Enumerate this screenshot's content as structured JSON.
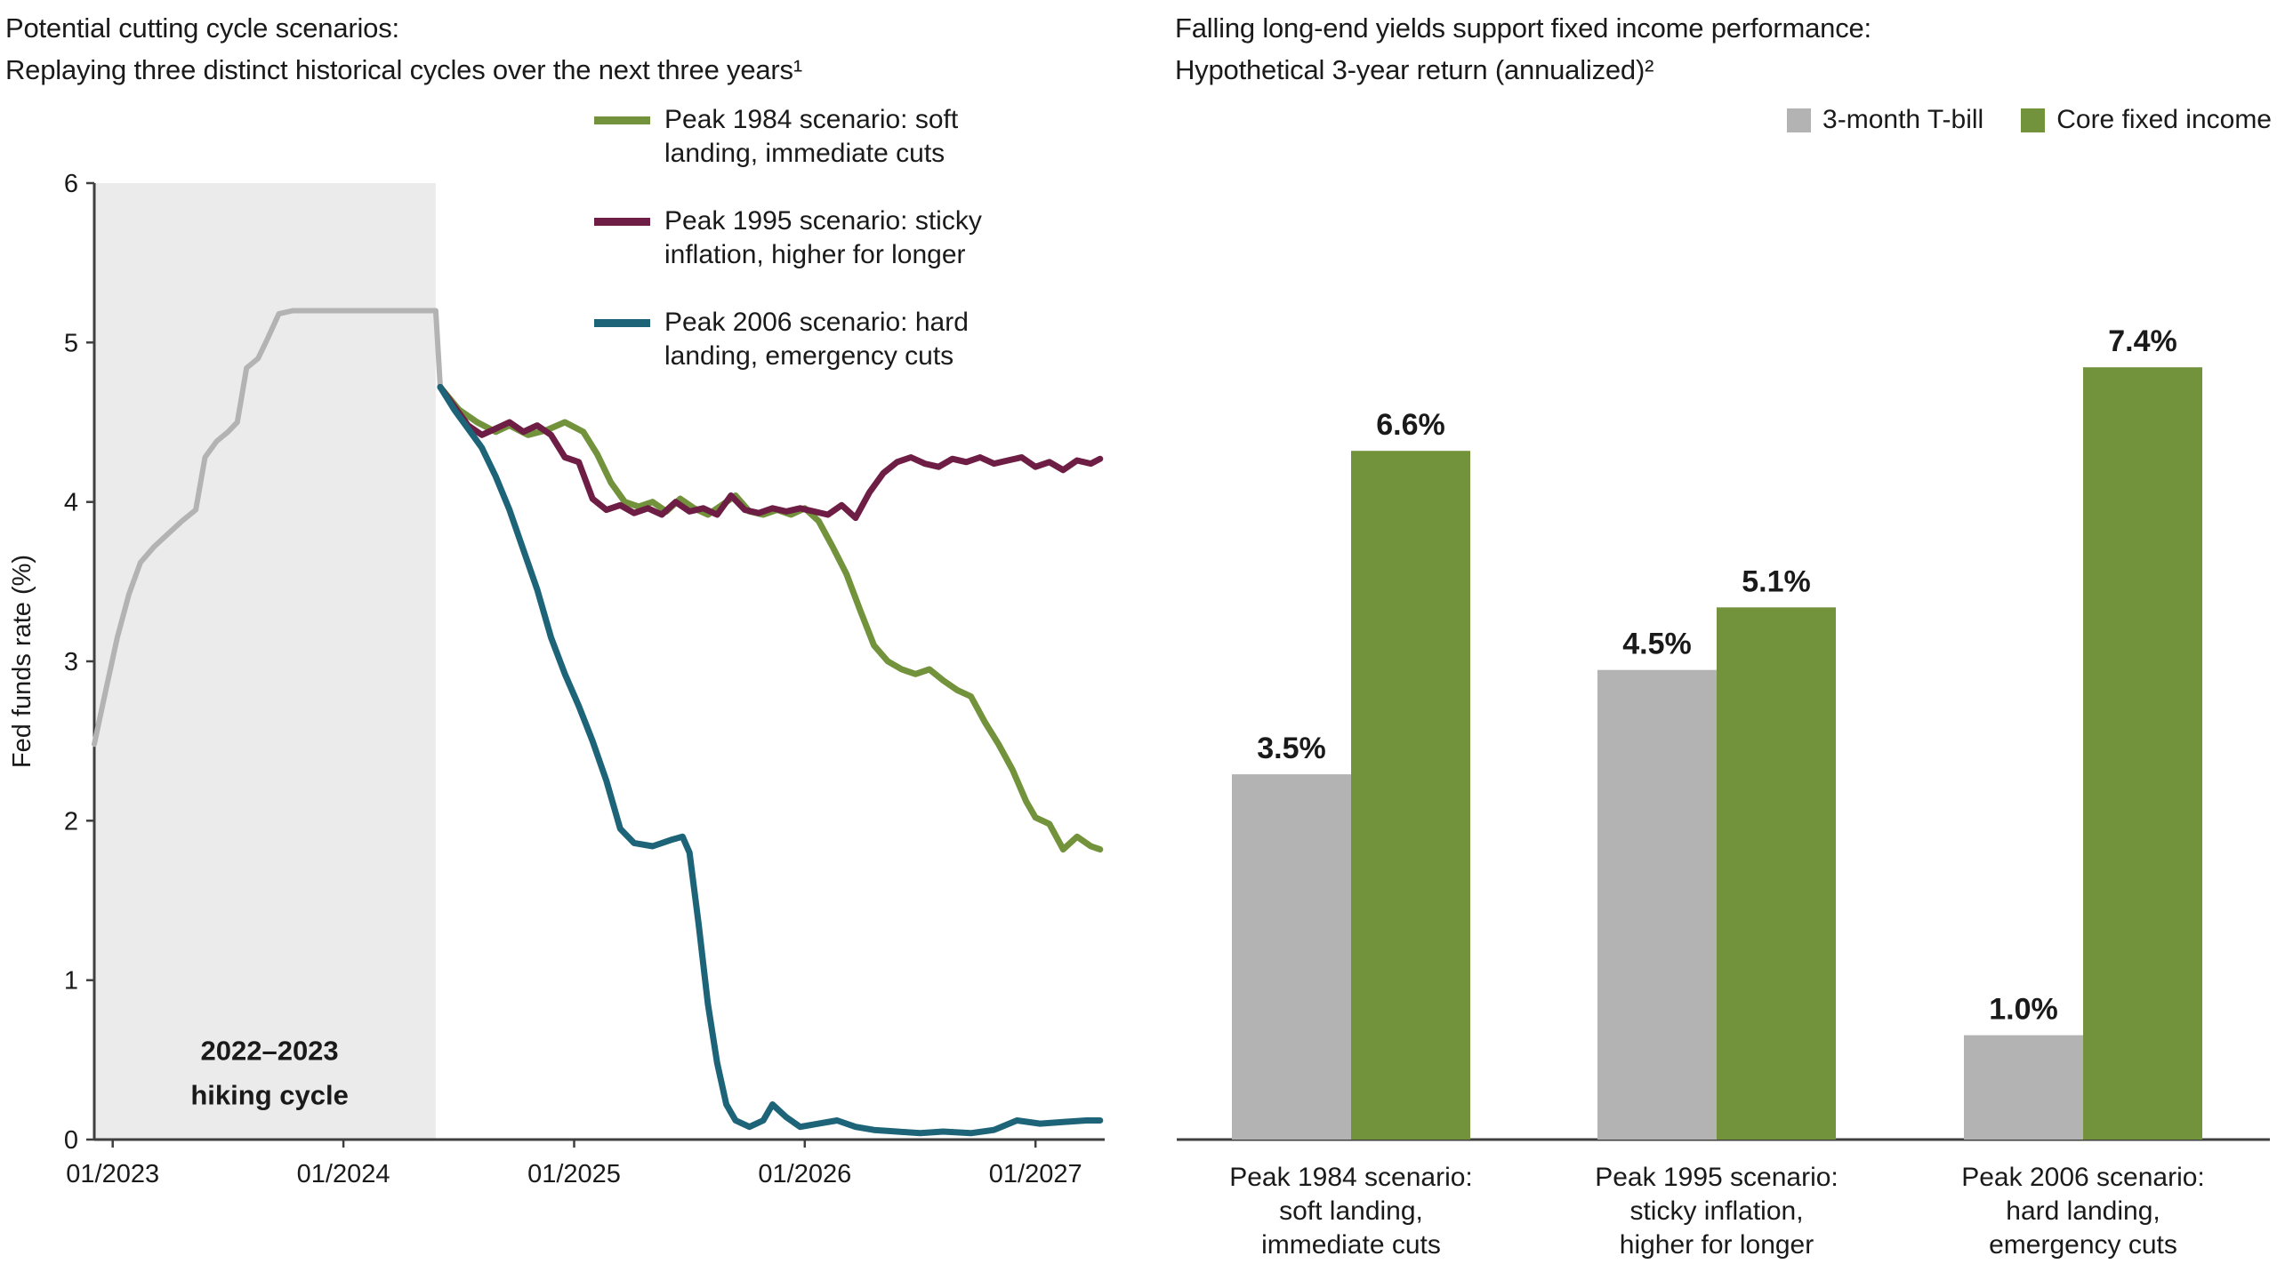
{
  "chart_data": [
    {
      "type": "line",
      "title_lines": [
        "Potential cutting cycle scenarios:",
        "Replaying three distinct historical cycles over the next three years¹"
      ],
      "ylabel": "Fed funds rate (%)",
      "ylim": [
        0,
        6
      ],
      "xlim": [
        2022.92,
        2027.3
      ],
      "grid": false,
      "legend_position": "top-right",
      "y_ticks": [
        0,
        1,
        2,
        3,
        4,
        5,
        6
      ],
      "x_ticks": [
        {
          "value": 2023,
          "label": "01/2023"
        },
        {
          "value": 2024,
          "label": "01/2024"
        },
        {
          "value": 2025,
          "label": "01/2025"
        },
        {
          "value": 2026,
          "label": "01/2026"
        },
        {
          "value": 2027,
          "label": "01/2027"
        }
      ],
      "shaded_region": {
        "from": 2022.92,
        "to": 2024.4,
        "color": "#ebebeb",
        "label_lines": [
          "2022–2023",
          "hiking cycle"
        ],
        "label_x": 2023.68,
        "label_y": [
          0.5,
          0.22
        ]
      },
      "series": [
        {
          "name": "Historical fed funds rate (2022–2023 hiking cycle)",
          "color": "#b3b3b3",
          "in_legend": false,
          "stroke_width": 6,
          "points": [
            [
              2022.92,
              2.48
            ],
            [
              2022.97,
              2.82
            ],
            [
              2023.02,
              3.15
            ],
            [
              2023.07,
              3.42
            ],
            [
              2023.12,
              3.62
            ],
            [
              2023.18,
              3.72
            ],
            [
              2023.24,
              3.8
            ],
            [
              2023.3,
              3.88
            ],
            [
              2023.36,
              3.95
            ],
            [
              2023.4,
              4.28
            ],
            [
              2023.45,
              4.38
            ],
            [
              2023.5,
              4.44
            ],
            [
              2023.54,
              4.5
            ],
            [
              2023.58,
              4.84
            ],
            [
              2023.63,
              4.9
            ],
            [
              2023.67,
              5.02
            ],
            [
              2023.72,
              5.18
            ],
            [
              2023.78,
              5.2
            ],
            [
              2024.4,
              5.2
            ],
            [
              2024.42,
              4.72
            ]
          ]
        },
        {
          "name": "Peak 1984 scenario: soft landing, immediate cuts",
          "color": "#72923c",
          "in_legend": true,
          "stroke_width": 7,
          "points": [
            [
              2024.42,
              4.72
            ],
            [
              2024.5,
              4.58
            ],
            [
              2024.58,
              4.5
            ],
            [
              2024.66,
              4.44
            ],
            [
              2024.72,
              4.48
            ],
            [
              2024.8,
              4.42
            ],
            [
              2024.88,
              4.45
            ],
            [
              2024.96,
              4.5
            ],
            [
              2025.04,
              4.44
            ],
            [
              2025.1,
              4.3
            ],
            [
              2025.16,
              4.12
            ],
            [
              2025.22,
              4.0
            ],
            [
              2025.28,
              3.97
            ],
            [
              2025.34,
              4.0
            ],
            [
              2025.4,
              3.94
            ],
            [
              2025.46,
              4.02
            ],
            [
              2025.52,
              3.96
            ],
            [
              2025.58,
              3.92
            ],
            [
              2025.64,
              3.98
            ],
            [
              2025.7,
              4.04
            ],
            [
              2025.76,
              3.94
            ],
            [
              2025.82,
              3.92
            ],
            [
              2025.88,
              3.95
            ],
            [
              2025.94,
              3.92
            ],
            [
              2026.0,
              3.96
            ],
            [
              2026.06,
              3.88
            ],
            [
              2026.12,
              3.72
            ],
            [
              2026.18,
              3.55
            ],
            [
              2026.24,
              3.32
            ],
            [
              2026.3,
              3.1
            ],
            [
              2026.36,
              3.0
            ],
            [
              2026.42,
              2.95
            ],
            [
              2026.48,
              2.92
            ],
            [
              2026.54,
              2.95
            ],
            [
              2026.6,
              2.88
            ],
            [
              2026.66,
              2.82
            ],
            [
              2026.72,
              2.78
            ],
            [
              2026.78,
              2.62
            ],
            [
              2026.84,
              2.48
            ],
            [
              2026.9,
              2.32
            ],
            [
              2026.96,
              2.12
            ],
            [
              2027.0,
              2.02
            ],
            [
              2027.06,
              1.98
            ],
            [
              2027.12,
              1.82
            ],
            [
              2027.18,
              1.9
            ],
            [
              2027.24,
              1.84
            ],
            [
              2027.28,
              1.82
            ]
          ]
        },
        {
          "name": "Peak 1995 scenario: sticky inflation, higher for longer",
          "color": "#6e1e45",
          "in_legend": true,
          "stroke_width": 7,
          "points": [
            [
              2024.42,
              4.72
            ],
            [
              2024.48,
              4.6
            ],
            [
              2024.54,
              4.48
            ],
            [
              2024.6,
              4.42
            ],
            [
              2024.66,
              4.46
            ],
            [
              2024.72,
              4.5
            ],
            [
              2024.78,
              4.44
            ],
            [
              2024.84,
              4.48
            ],
            [
              2024.9,
              4.42
            ],
            [
              2024.96,
              4.28
            ],
            [
              2025.02,
              4.25
            ],
            [
              2025.08,
              4.02
            ],
            [
              2025.14,
              3.95
            ],
            [
              2025.2,
              3.98
            ],
            [
              2025.26,
              3.93
            ],
            [
              2025.32,
              3.96
            ],
            [
              2025.38,
              3.92
            ],
            [
              2025.44,
              4.0
            ],
            [
              2025.5,
              3.94
            ],
            [
              2025.56,
              3.96
            ],
            [
              2025.62,
              3.92
            ],
            [
              2025.68,
              4.04
            ],
            [
              2025.74,
              3.95
            ],
            [
              2025.8,
              3.93
            ],
            [
              2025.86,
              3.96
            ],
            [
              2025.92,
              3.94
            ],
            [
              2025.98,
              3.96
            ],
            [
              2026.04,
              3.94
            ],
            [
              2026.1,
              3.92
            ],
            [
              2026.16,
              3.98
            ],
            [
              2026.22,
              3.9
            ],
            [
              2026.28,
              4.06
            ],
            [
              2026.34,
              4.18
            ],
            [
              2026.4,
              4.25
            ],
            [
              2026.46,
              4.28
            ],
            [
              2026.52,
              4.24
            ],
            [
              2026.58,
              4.22
            ],
            [
              2026.64,
              4.27
            ],
            [
              2026.7,
              4.25
            ],
            [
              2026.76,
              4.28
            ],
            [
              2026.82,
              4.24
            ],
            [
              2026.88,
              4.26
            ],
            [
              2026.94,
              4.28
            ],
            [
              2027.0,
              4.22
            ],
            [
              2027.06,
              4.25
            ],
            [
              2027.12,
              4.2
            ],
            [
              2027.18,
              4.26
            ],
            [
              2027.24,
              4.24
            ],
            [
              2027.28,
              4.27
            ]
          ]
        },
        {
          "name": "Peak 2006 scenario: hard landing, emergency cuts",
          "color": "#1e6479",
          "in_legend": true,
          "stroke_width": 7,
          "points": [
            [
              2024.42,
              4.72
            ],
            [
              2024.48,
              4.58
            ],
            [
              2024.54,
              4.46
            ],
            [
              2024.6,
              4.34
            ],
            [
              2024.66,
              4.16
            ],
            [
              2024.72,
              3.95
            ],
            [
              2024.78,
              3.7
            ],
            [
              2024.84,
              3.45
            ],
            [
              2024.9,
              3.15
            ],
            [
              2024.96,
              2.92
            ],
            [
              2025.02,
              2.72
            ],
            [
              2025.08,
              2.5
            ],
            [
              2025.14,
              2.25
            ],
            [
              2025.2,
              1.95
            ],
            [
              2025.26,
              1.86
            ],
            [
              2025.34,
              1.84
            ],
            [
              2025.42,
              1.88
            ],
            [
              2025.47,
              1.9
            ],
            [
              2025.5,
              1.8
            ],
            [
              2025.54,
              1.35
            ],
            [
              2025.58,
              0.85
            ],
            [
              2025.62,
              0.48
            ],
            [
              2025.66,
              0.22
            ],
            [
              2025.7,
              0.12
            ],
            [
              2025.76,
              0.08
            ],
            [
              2025.82,
              0.12
            ],
            [
              2025.86,
              0.22
            ],
            [
              2025.92,
              0.14
            ],
            [
              2025.98,
              0.08
            ],
            [
              2026.06,
              0.1
            ],
            [
              2026.14,
              0.12
            ],
            [
              2026.22,
              0.08
            ],
            [
              2026.3,
              0.06
            ],
            [
              2026.4,
              0.05
            ],
            [
              2026.5,
              0.04
            ],
            [
              2026.6,
              0.05
            ],
            [
              2026.72,
              0.04
            ],
            [
              2026.82,
              0.06
            ],
            [
              2026.92,
              0.12
            ],
            [
              2027.02,
              0.1
            ],
            [
              2027.12,
              0.11
            ],
            [
              2027.22,
              0.12
            ],
            [
              2027.28,
              0.12
            ]
          ]
        }
      ]
    },
    {
      "type": "bar",
      "title_lines": [
        "Falling long-end yields support fixed income performance:",
        "Hypothetical 3-year return (annualized)²"
      ],
      "ylim": [
        0,
        8
      ],
      "unit": "%",
      "grid": false,
      "legend_position": "top-right",
      "categories": [
        [
          "Peak 1984 scenario:",
          "soft landing,",
          "immediate cuts"
        ],
        [
          "Peak 1995 scenario:",
          "sticky inflation,",
          "higher for longer"
        ],
        [
          "Peak 2006 scenario:",
          "hard landing,",
          "emergency cuts"
        ]
      ],
      "series": [
        {
          "name": "3-month T-bill",
          "color": "#b3b3b3",
          "values": [
            3.5,
            4.5,
            1.0
          ]
        },
        {
          "name": "Core fixed income",
          "color": "#72923c",
          "values": [
            6.6,
            5.1,
            7.4
          ]
        }
      ],
      "value_label_format": "{v}%"
    }
  ]
}
